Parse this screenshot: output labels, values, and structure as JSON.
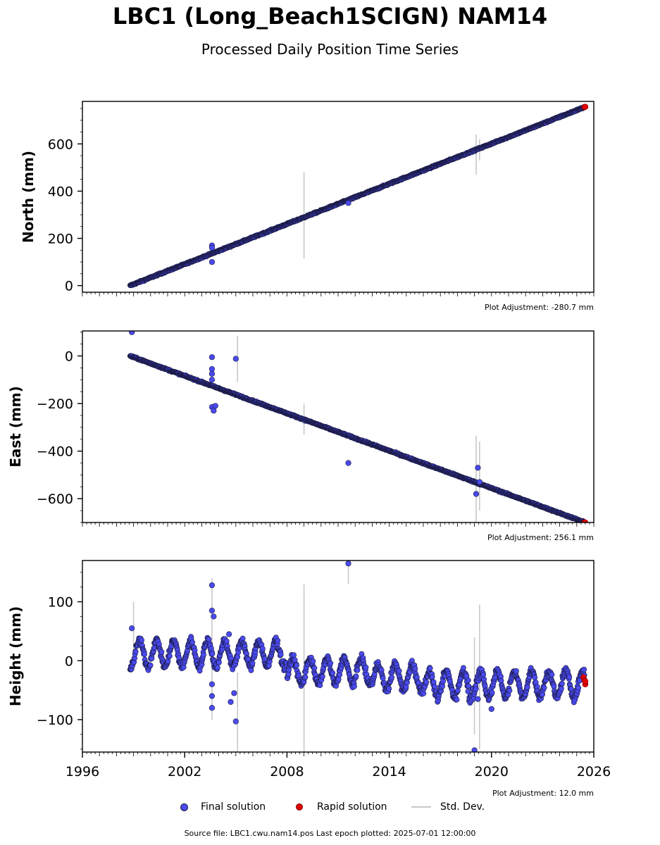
{
  "title": "LBC1 (Long_Beach1SCIGN) NAM14",
  "subtitle": "Processed Daily Position Time Series",
  "chart_data": [
    {
      "type": "scatter",
      "id": "north",
      "ylabel": "North (mm)",
      "xlim": [
        1996,
        2026
      ],
      "ylim": [
        -28,
        780
      ],
      "yticks": [
        0,
        200,
        400,
        600
      ],
      "yticklabels": [
        "0",
        "200",
        "400",
        "600"
      ],
      "adjustment_label": "Plot Adjustment: -280.7 mm",
      "x_tick_labels_shown": false,
      "trend": [
        [
          1998.8,
          0
        ],
        [
          2025.5,
          757
        ]
      ],
      "outliers": [
        [
          2003.6,
          170
        ],
        [
          2003.6,
          160
        ],
        [
          2003.6,
          100
        ],
        [
          2011.6,
          350
        ]
      ],
      "errorbars": [
        [
          2009.0,
          115,
          480
        ],
        [
          2019.1,
          470,
          640
        ],
        [
          2019.3,
          530,
          620
        ]
      ],
      "rapid": [
        [
          2025.45,
          756
        ],
        [
          2025.5,
          757
        ]
      ]
    },
    {
      "type": "scatter",
      "id": "east",
      "ylabel": "East (mm)",
      "xlim": [
        1996,
        2026
      ],
      "ylim": [
        -700,
        105
      ],
      "yticks": [
        -600,
        -400,
        -200,
        0
      ],
      "yticklabels": [
        "−600",
        "−400",
        "−200",
        "0"
      ],
      "adjustment_label": "Plot Adjustment: 256.1 mm",
      "x_tick_labels_shown": false,
      "trend": [
        [
          1998.8,
          0
        ],
        [
          2025.5,
          -700
        ]
      ],
      "outliers": [
        [
          1998.9,
          100
        ],
        [
          2003.6,
          -5
        ],
        [
          2003.6,
          -55
        ],
        [
          2003.6,
          -75
        ],
        [
          2003.6,
          -100
        ],
        [
          2003.6,
          -215
        ],
        [
          2003.8,
          -210
        ],
        [
          2003.7,
          -230
        ],
        [
          2005.0,
          -12
        ],
        [
          2011.6,
          -450
        ],
        [
          2019.1,
          -580
        ],
        [
          2019.2,
          -470
        ],
        [
          2019.3,
          -530
        ]
      ],
      "errorbars": [
        [
          2005.1,
          -110,
          85
        ],
        [
          2009.0,
          -330,
          -200
        ],
        [
          2019.1,
          -700,
          -335
        ],
        [
          2019.3,
          -650,
          -360
        ]
      ],
      "rapid": [
        [
          2025.45,
          -699
        ],
        [
          2025.5,
          -700
        ]
      ]
    },
    {
      "type": "scatter",
      "id": "height",
      "ylabel": "Height (mm)",
      "xlim": [
        1996,
        2026
      ],
      "ylim": [
        -155,
        170
      ],
      "yticks": [
        -100,
        0,
        100
      ],
      "yticklabels": [
        "−100",
        "0",
        "100"
      ],
      "adjustment_label": "Plot Adjustment: 12.0 mm",
      "x_tick_labels_shown": true,
      "xticks": [
        1996,
        2002,
        2008,
        2014,
        2020,
        2026
      ],
      "xticklabels": [
        "1996",
        "2002",
        "2008",
        "2014",
        "2020",
        "2026"
      ],
      "outliers": [
        [
          1998.9,
          55
        ],
        [
          2003.6,
          128
        ],
        [
          2003.6,
          85
        ],
        [
          2003.7,
          75
        ],
        [
          2003.6,
          -40
        ],
        [
          2003.6,
          -60
        ],
        [
          2003.6,
          -80
        ],
        [
          2004.6,
          45
        ],
        [
          2004.7,
          -70
        ],
        [
          2004.9,
          -55
        ],
        [
          2005.0,
          -103
        ],
        [
          2011.6,
          165
        ],
        [
          2019.0,
          -152
        ],
        [
          2019.2,
          -65
        ],
        [
          2020.0,
          -82
        ]
      ],
      "errorbars": [
        [
          1999.0,
          0,
          100
        ],
        [
          2003.6,
          -100,
          140
        ],
        [
          2005.1,
          -155,
          -20
        ],
        [
          2009.0,
          -155,
          130
        ],
        [
          2011.6,
          130,
          170
        ],
        [
          2019.0,
          -125,
          40
        ],
        [
          2019.3,
          -150,
          95
        ]
      ],
      "rapid": [
        [
          2025.4,
          -28
        ],
        [
          2025.45,
          -33
        ],
        [
          2025.5,
          -40
        ],
        [
          2025.5,
          -35
        ]
      ]
    }
  ],
  "legend": {
    "final": "Final solution",
    "rapid": "Rapid solution",
    "stddev": "Std. Dev."
  },
  "colors": {
    "final_fill": "#4a4af0",
    "final_edge": "#1a1a40",
    "rapid_fill": "#e00000",
    "stddev": "#c8c8c8"
  },
  "footer": "Source file: LBC1.cwu.nam14.pos  Last epoch plotted: 2025-07-01 12:00:00"
}
